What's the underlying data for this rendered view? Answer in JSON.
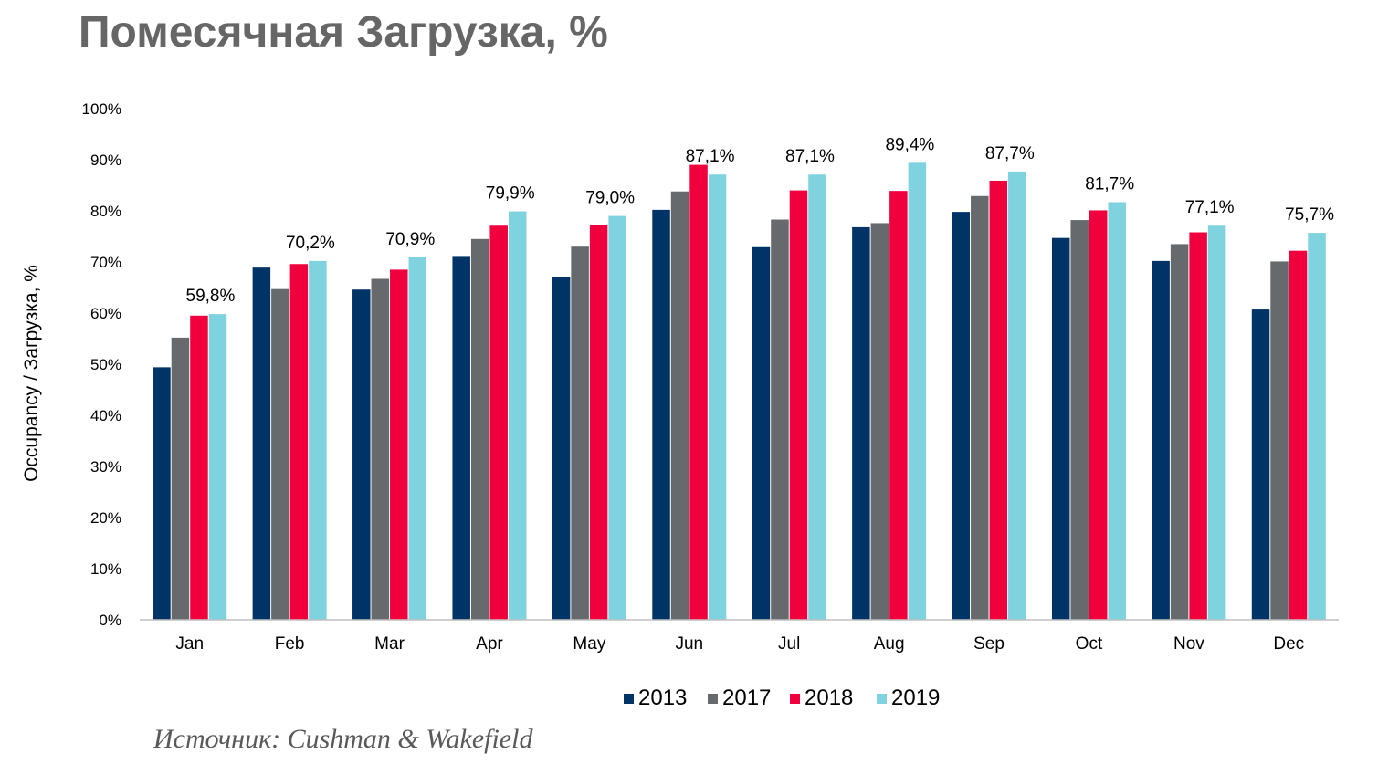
{
  "chart_data": {
    "type": "bar",
    "title": "Помесячная Загрузка, %",
    "ylabel": "Occupancy / Загрузка, %",
    "xlabel": "",
    "ylim": [
      0,
      100
    ],
    "yticks": [
      "0%",
      "10%",
      "20%",
      "30%",
      "40%",
      "50%",
      "60%",
      "70%",
      "80%",
      "90%",
      "100%"
    ],
    "categories": [
      "Jan",
      "Feb",
      "Mar",
      "Apr",
      "May",
      "Jun",
      "Jul",
      "Aug",
      "Sep",
      "Oct",
      "Nov",
      "Dec"
    ],
    "series": [
      {
        "name": "2013",
        "color": "#003366",
        "values": [
          49.4,
          68.9,
          64.6,
          71.0,
          67.1,
          80.2,
          72.9,
          76.8,
          79.8,
          74.7,
          70.2,
          60.7
        ]
      },
      {
        "name": "2017",
        "color": "#666a6d",
        "values": [
          55.2,
          64.7,
          66.7,
          74.5,
          73.0,
          83.8,
          78.3,
          77.6,
          82.9,
          78.2,
          73.5,
          70.1
        ]
      },
      {
        "name": "2018",
        "color": "#f0003c",
        "values": [
          59.5,
          69.6,
          68.5,
          77.1,
          77.2,
          89.0,
          84.0,
          83.9,
          85.9,
          80.1,
          75.8,
          72.2
        ]
      },
      {
        "name": "2019",
        "color": "#7fd3df",
        "values": [
          59.8,
          70.2,
          70.9,
          79.9,
          79.0,
          87.1,
          87.1,
          89.4,
          87.7,
          81.7,
          77.1,
          75.7
        ]
      }
    ],
    "data_labels": [
      "59,8%",
      "70,2%",
      "70,9%",
      "79,9%",
      "79,0%",
      "87,1%",
      "87,1%",
      "89,4%",
      "87,7%",
      "81,7%",
      "77,1%",
      "75,7%"
    ],
    "legend_position": "bottom-center",
    "grid": false
  },
  "source": "Источник: Cushman & Wakefield"
}
